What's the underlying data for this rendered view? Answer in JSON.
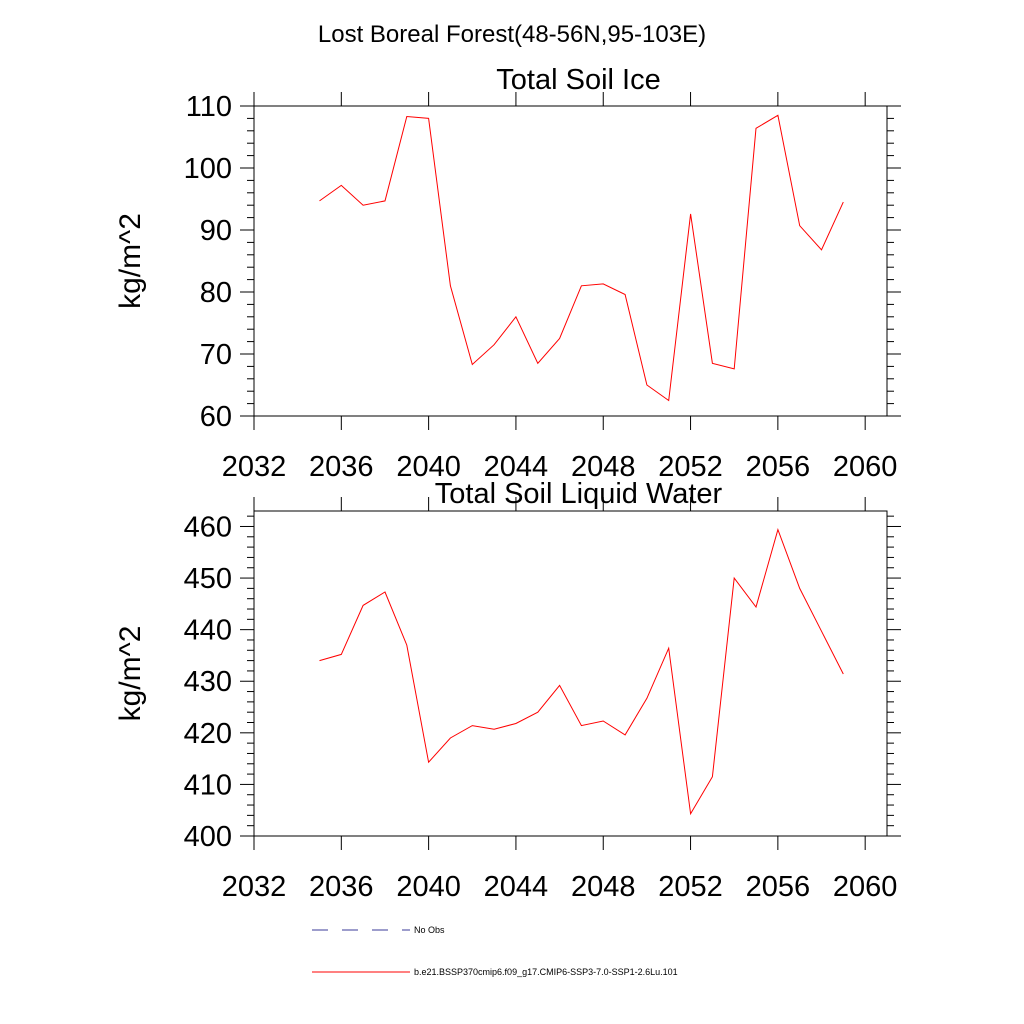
{
  "figure": {
    "title": "Lost Boreal Forest(48-56N,95-103E)"
  },
  "legend": {
    "entries": [
      {
        "label": "No Obs",
        "color": "#3b3b9a",
        "style": "dashed"
      },
      {
        "label": "b.e21.BSSP370cmip6.f09_g17.CMIP6-SSP3-7.0-SSP1-2.6Lu.101",
        "color": "#ff0000",
        "style": "solid"
      }
    ]
  },
  "chart_data": [
    {
      "type": "line",
      "title": "Total Soil Ice",
      "xlabel": "",
      "ylabel": "kg/m^2",
      "xlim": [
        2032,
        2061
      ],
      "ylim": [
        60,
        110
      ],
      "x_ticks": [
        2032,
        2036,
        2040,
        2044,
        2048,
        2052,
        2056,
        2060
      ],
      "y_ticks": [
        60,
        70,
        80,
        90,
        100,
        110
      ],
      "grid": false,
      "series": [
        {
          "name": "b.e21.BSSP370cmip6.f09_g17.CMIP6-SSP3-7.0-SSP1-2.6Lu.101",
          "color": "#ff0000",
          "x": [
            2035,
            2036,
            2037,
            2038,
            2039,
            2040,
            2041,
            2042,
            2043,
            2044,
            2045,
            2046,
            2047,
            2048,
            2049,
            2050,
            2051,
            2052,
            2053,
            2054,
            2055,
            2056,
            2057,
            2058,
            2059
          ],
          "y": [
            94.7,
            97.2,
            94.0,
            94.7,
            108.3,
            108.0,
            81.0,
            68.3,
            71.5,
            76.0,
            68.5,
            72.5,
            81.0,
            81.3,
            79.6,
            65.0,
            62.5,
            92.6,
            68.5,
            67.6,
            106.4,
            108.5,
            90.7,
            86.8,
            94.5
          ]
        }
      ]
    },
    {
      "type": "line",
      "title": "Total Soil Liquid Water",
      "xlabel": "",
      "ylabel": "kg/m^2",
      "xlim": [
        2032,
        2061
      ],
      "ylim": [
        400,
        463
      ],
      "x_ticks": [
        2032,
        2036,
        2040,
        2044,
        2048,
        2052,
        2056,
        2060
      ],
      "y_ticks": [
        400,
        410,
        420,
        430,
        440,
        450,
        460
      ],
      "grid": false,
      "series": [
        {
          "name": "b.e21.BSSP370cmip6.f09_g17.CMIP6-SSP3-7.0-SSP1-2.6Lu.101",
          "color": "#ff0000",
          "x": [
            2035,
            2036,
            2037,
            2038,
            2039,
            2040,
            2041,
            2042,
            2043,
            2044,
            2045,
            2046,
            2047,
            2048,
            2049,
            2050,
            2051,
            2052,
            2053,
            2054,
            2055,
            2056,
            2057,
            2058,
            2059
          ],
          "y": [
            434.0,
            435.2,
            444.7,
            447.3,
            437.0,
            414.3,
            419.0,
            421.4,
            420.7,
            421.8,
            424.0,
            429.2,
            421.4,
            422.3,
            419.6,
            426.7,
            436.4,
            404.3,
            411.5,
            450.0,
            444.4,
            459.4,
            448.0,
            439.7,
            431.4
          ]
        }
      ]
    }
  ]
}
